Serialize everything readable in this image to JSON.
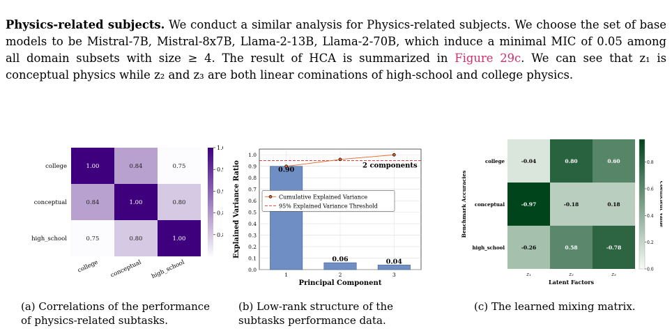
{
  "paragraph": {
    "heading": "Physics-related subjects.",
    "body_1": " We conduct a similar analysis for Physics-related subjects. We choose the set of base models to be Mistral-7B, Mistral-8x7B, Llama-2-13B, Llama-2-70B, which induce a minimal MIC of 0.05 among all domain subsets with size ≥ 4. The result of HCA is summarized in ",
    "ref": "Figure 29c",
    "body_2": ". We can see that z₁ is conceptual physics while z₂ and z₃ are both linear cominations of high-school and college physics."
  },
  "captions": {
    "a": "(a) Correlations of the performance of physics-related subtasks.",
    "b": "(b) Low-rank structure of the subtasks performance data.",
    "c": "(c) The learned mixing matrix."
  },
  "chart_data": [
    {
      "type": "heatmap",
      "rows": [
        "college",
        "conceptual",
        "high_school"
      ],
      "columns": [
        "college",
        "conceptual",
        "high_school"
      ],
      "values": [
        [
          1.0,
          0.84,
          0.75
        ],
        [
          0.84,
          1.0,
          0.8
        ],
        [
          0.75,
          0.8,
          1.0
        ]
      ],
      "colorbar_ticks": [
        "1.00",
        "0.95",
        "0.90",
        "0.85",
        "0.80"
      ],
      "colorbar_range": [
        0.75,
        1.0
      ],
      "colormap": [
        "#fcfbfd",
        "#3f007d"
      ]
    },
    {
      "type": "bar",
      "categories": [
        "1",
        "2",
        "3"
      ],
      "values": [
        0.9,
        0.06,
        0.04
      ],
      "value_labels": [
        "0.90",
        "0.06",
        "0.04"
      ],
      "line_values": [
        0.9,
        0.96,
        1.0
      ],
      "threshold": 0.95,
      "xlabel": "Principal Component",
      "ylabel": "Explained Variance Ratio",
      "ylim": [
        0.0,
        1.05
      ],
      "yticks": [
        "0.0",
        "0.1",
        "0.2",
        "0.3",
        "0.4",
        "0.5",
        "0.6",
        "0.7",
        "0.8",
        "0.9",
        "1.0"
      ],
      "legend": [
        "Cumulative Explained Variance",
        "95% Explained Variance Threshold"
      ],
      "annotation": "2 components",
      "bar_color": "#6f8fc4",
      "line_color": "#e8743b",
      "threshold_color": "#d62728",
      "grid": true
    },
    {
      "type": "heatmap",
      "rows": [
        "college",
        "conceptual",
        "high_school"
      ],
      "columns": [
        "z1",
        "z2",
        "z3"
      ],
      "values": [
        [
          -0.04,
          0.8,
          0.6
        ],
        [
          -0.97,
          -0.18,
          0.18
        ],
        [
          -0.26,
          0.58,
          -0.78
        ]
      ],
      "value_labels": [
        [
          "-0.04",
          "0.80",
          "0.60"
        ],
        [
          "-0.97",
          "-0.18",
          "0.18"
        ],
        [
          "-0.26",
          "0.58",
          "-0.78"
        ]
      ],
      "ylabel": "Benchmark Accuracies",
      "xlabel": "Latent Factors",
      "colorbar_label": "Coefficient Value",
      "colorbar_ticks": [
        "0.8",
        "0.6",
        "0.4",
        "0.2",
        "0.0"
      ],
      "colorbar_range": [
        0.0,
        0.97
      ],
      "colormap": [
        "#f7fcf5",
        "#00441b"
      ]
    }
  ]
}
